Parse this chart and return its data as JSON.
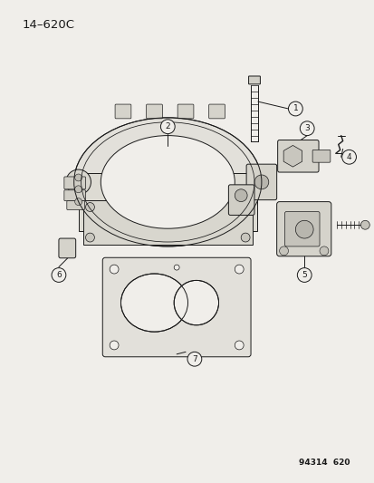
{
  "title": "14–620C",
  "part_number": "94314  620",
  "background_color": "#f0eeea",
  "line_color": "#1a1a1a",
  "figsize": [
    4.14,
    5.33
  ],
  "dpi": 100,
  "title_fontsize": 9.5,
  "label_fontsize": 7.0,
  "lw": 0.7
}
